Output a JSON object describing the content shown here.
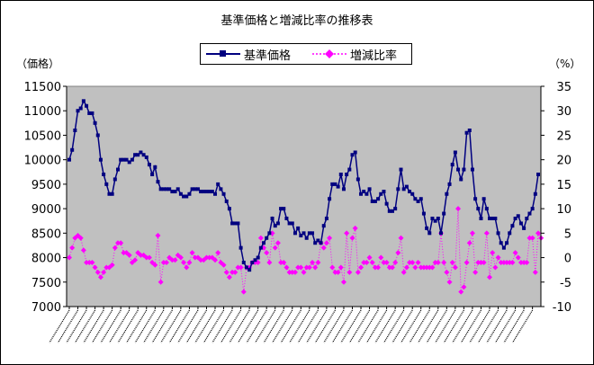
{
  "chart_data": {
    "type": "line",
    "title": "基準価格と増減比率の推移表",
    "left_unit": "（価格）",
    "right_unit": "（%）",
    "legend": [
      {
        "name": "基準価格",
        "color": "#000080",
        "marker": "square",
        "style": "solid"
      },
      {
        "name": "増減比率",
        "color": "#ff00ff",
        "marker": "diamond",
        "style": "dotted"
      }
    ],
    "y_left_range": [
      7000,
      11500
    ],
    "y_left_ticks": [
      "7000",
      "7500",
      "8000",
      "8500",
      "9000",
      "9500",
      "10000",
      "10500",
      "11000",
      "11500"
    ],
    "y_right_range": [
      -10,
      35
    ],
    "y_right_ticks": [
      "-10",
      "-5",
      "0",
      "5",
      "10",
      "15",
      "20",
      "25",
      "30",
      "35"
    ],
    "plot_background": "#c0c0c0",
    "grid": false,
    "x_label_note": "date labels unreadable (rotated)",
    "series": [
      {
        "name": "基準価格",
        "axis": "left",
        "values": [
          10000,
          10200,
          10600,
          11000,
          11050,
          11200,
          11100,
          10950,
          10950,
          10750,
          10500,
          10000,
          9700,
          9500,
          9300,
          9300,
          9600,
          9800,
          10000,
          10000,
          10000,
          9950,
          10000,
          10100,
          10100,
          10150,
          10100,
          10050,
          9900,
          9700,
          9850,
          9550,
          9400,
          9400,
          9400,
          9400,
          9350,
          9350,
          9400,
          9300,
          9250,
          9250,
          9300,
          9400,
          9400,
          9400,
          9350,
          9350,
          9350,
          9350,
          9350,
          9300,
          9500,
          9400,
          9300,
          9150,
          9000,
          8700,
          8700,
          8700,
          8200,
          7900,
          7800,
          7750,
          7900,
          7950,
          8000,
          8200,
          8300,
          8400,
          8500,
          8800,
          8650,
          8700,
          9000,
          9000,
          8800,
          8700,
          8700,
          8500,
          8600,
          8450,
          8500,
          8400,
          8500,
          8500,
          8300,
          8350,
          8300,
          8650,
          8800,
          9200,
          9500,
          9500,
          9450,
          9700,
          9400,
          9700,
          9800,
          10100,
          10150,
          9600,
          9300,
          9350,
          9300,
          9400,
          9150,
          9150,
          9200,
          9300,
          9350,
          9100,
          8950,
          8950,
          9000,
          9400,
          9800,
          9400,
          9450,
          9350,
          9300,
          9200,
          9150,
          9200,
          8900,
          8600,
          8500,
          8800,
          8750,
          8800,
          8500,
          8900,
          9300,
          9500,
          9900,
          10150,
          9800,
          9600,
          9800,
          10550,
          10600,
          9800,
          9200,
          9000,
          8800,
          9200,
          9000,
          8800,
          8800,
          8800,
          8500,
          8300,
          8200,
          8300,
          8500,
          8650,
          8800,
          8850,
          8700,
          8600,
          8800,
          8900,
          9000,
          9300,
          9700
        ]
      },
      {
        "name": "増減比率",
        "axis": "right",
        "values": [
          0,
          2,
          4,
          4.5,
          4,
          1.5,
          -1,
          -1,
          -1,
          -2,
          -3,
          -4,
          -3,
          -2,
          -2,
          -1.5,
          2,
          3,
          3,
          1,
          1,
          0.5,
          -1,
          -0.5,
          1,
          0.5,
          0.5,
          0,
          0,
          -1,
          -1.5,
          4.5,
          -5,
          -1,
          -1,
          0,
          -0.5,
          -0.5,
          0.5,
          0,
          -1,
          -2,
          -1,
          1,
          0,
          0,
          -0.5,
          -0.5,
          0,
          0,
          0,
          -0.5,
          1,
          -1,
          -1.5,
          -3,
          -4,
          -3,
          -3,
          -2,
          -2,
          -7,
          -2,
          -2,
          -1,
          -1,
          -1,
          4,
          2,
          1,
          -1,
          5,
          2,
          3,
          -1,
          -1,
          -2,
          -3,
          -3,
          -3,
          -2,
          -2,
          -3,
          -2,
          -2,
          -1,
          -2,
          -1,
          3,
          2,
          3,
          4,
          -2,
          -3,
          -3,
          -2,
          -5,
          5,
          -3,
          4,
          6,
          -3,
          -2,
          -1,
          -1,
          0,
          -1,
          -2,
          -2,
          0,
          -1,
          -1,
          -2,
          -2,
          -1,
          1,
          4,
          -3,
          -2,
          -1,
          -1,
          -2,
          -1,
          -2,
          -2,
          -2,
          -2,
          -2,
          -1,
          -1,
          5,
          -1,
          -3,
          -5,
          -1,
          -2,
          10,
          -7,
          -6,
          -1,
          3,
          5,
          -3,
          -1,
          -1,
          -1,
          5,
          -4,
          1,
          -2,
          0,
          -1,
          -1,
          -1,
          -1,
          -1,
          1,
          0,
          -1,
          -1,
          -1,
          4,
          4,
          -3,
          5,
          4
        ]
      }
    ]
  }
}
